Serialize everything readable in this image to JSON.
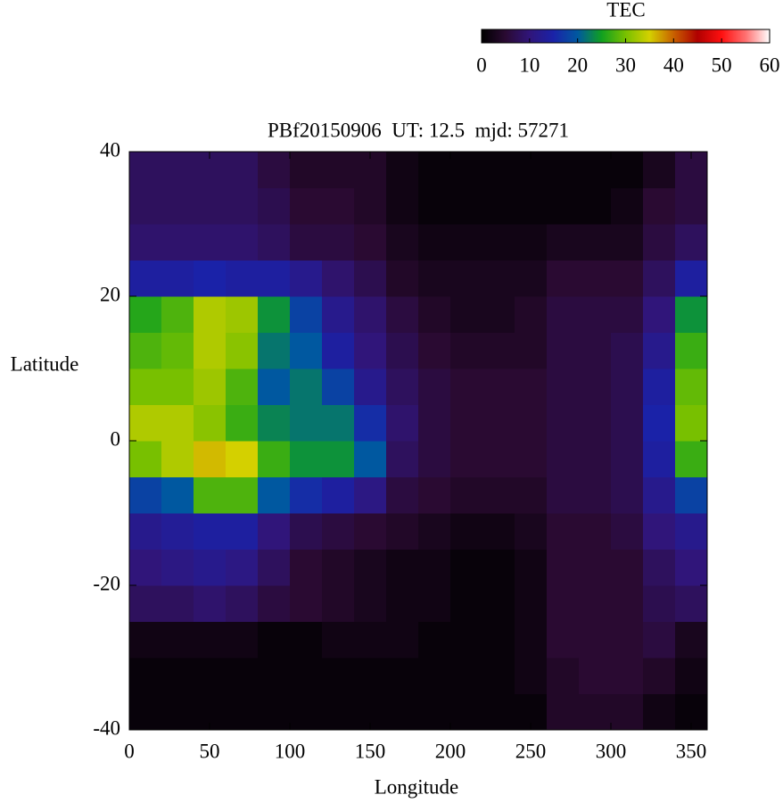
{
  "chart_data": {
    "type": "heatmap",
    "title": "PBf20150906  UT: 12.5  mjd: 57271",
    "xlabel": "Longitude",
    "ylabel": "Latitude",
    "colorbar_label": "TEC",
    "xlim": [
      0,
      360
    ],
    "ylim": [
      -40,
      40
    ],
    "zlim": [
      0,
      60
    ],
    "xticks": [
      0,
      50,
      100,
      150,
      200,
      250,
      300,
      350
    ],
    "yticks": [
      -40,
      -20,
      0,
      20,
      40
    ],
    "zticks": [
      0,
      10,
      20,
      30,
      40,
      50,
      60
    ],
    "colormap": [
      "#000000",
      "#2a0a32",
      "#30157a",
      "#1a22a8",
      "#0058a0",
      "#10a020",
      "#78c000",
      "#d4d000",
      "#c86000",
      "#b00000",
      "#ff1010",
      "#ff7070",
      "#ffffff"
    ],
    "x": [
      10,
      30,
      50,
      70,
      90,
      110,
      130,
      150,
      170,
      190,
      210,
      230,
      250,
      270,
      290,
      310,
      330,
      350
    ],
    "y": [
      -37.5,
      -32.5,
      -27.5,
      -22.5,
      -17.5,
      -12.5,
      -7.5,
      -2.5,
      2.5,
      7.5,
      12.5,
      17.5,
      22.5,
      27.5,
      32.5,
      37.5
    ],
    "z": [
      [
        1,
        1,
        1,
        1,
        1,
        1,
        1,
        1,
        1,
        1,
        1,
        1,
        1,
        4,
        4,
        4,
        2,
        1
      ],
      [
        1,
        1,
        1,
        1,
        1,
        1,
        1,
        1,
        1,
        1,
        1,
        1,
        2,
        4,
        5,
        5,
        4,
        2
      ],
      [
        2,
        2,
        2,
        2,
        1,
        1,
        2,
        2,
        2,
        1,
        1,
        1,
        2,
        5,
        5,
        5,
        6,
        3
      ],
      [
        8,
        8,
        9,
        8,
        6,
        5,
        4,
        3,
        2,
        2,
        1,
        1,
        2,
        5,
        5,
        5,
        7,
        8
      ],
      [
        10,
        11,
        12,
        11,
        8,
        5,
        4,
        3,
        2,
        2,
        1,
        1,
        2,
        5,
        5,
        5,
        8,
        10
      ],
      [
        12,
        13,
        14,
        14,
        10,
        7,
        6,
        5,
        4,
        3,
        2,
        2,
        3,
        5,
        5,
        6,
        10,
        12
      ],
      [
        18,
        20,
        28,
        28,
        20,
        16,
        14,
        11,
        6,
        5,
        4,
        4,
        4,
        6,
        6,
        7,
        12,
        18
      ],
      [
        30,
        33,
        36,
        35,
        27,
        24,
        24,
        20,
        8,
        6,
        5,
        5,
        5,
        6,
        6,
        7,
        14,
        27
      ],
      [
        33,
        33,
        31,
        27,
        23,
        22,
        22,
        16,
        9,
        6,
        5,
        5,
        5,
        6,
        6,
        7,
        15,
        30
      ],
      [
        30,
        30,
        32,
        28,
        20,
        22,
        18,
        12,
        8,
        6,
        5,
        5,
        5,
        6,
        6,
        7,
        14,
        29
      ],
      [
        28,
        29,
        33,
        31,
        22,
        20,
        14,
        10,
        7,
        5,
        4,
        4,
        4,
        6,
        6,
        7,
        12,
        27
      ],
      [
        26,
        28,
        33,
        32,
        24,
        18,
        12,
        9,
        6,
        4,
        3,
        3,
        4,
        6,
        6,
        6,
        10,
        24
      ],
      [
        14,
        14,
        15,
        14,
        14,
        12,
        9,
        7,
        4,
        3,
        3,
        3,
        3,
        5,
        5,
        5,
        8,
        14
      ],
      [
        9,
        9,
        9,
        9,
        8,
        6,
        6,
        5,
        3,
        2,
        2,
        2,
        2,
        3,
        3,
        3,
        6,
        8
      ],
      [
        8,
        8,
        8,
        8,
        7,
        5,
        5,
        4,
        2,
        1,
        1,
        1,
        1,
        1,
        1,
        2,
        5,
        6
      ],
      [
        8,
        8,
        8,
        8,
        6,
        4,
        4,
        4,
        2,
        1,
        1,
        1,
        1,
        1,
        1,
        1,
        3,
        6
      ]
    ]
  }
}
